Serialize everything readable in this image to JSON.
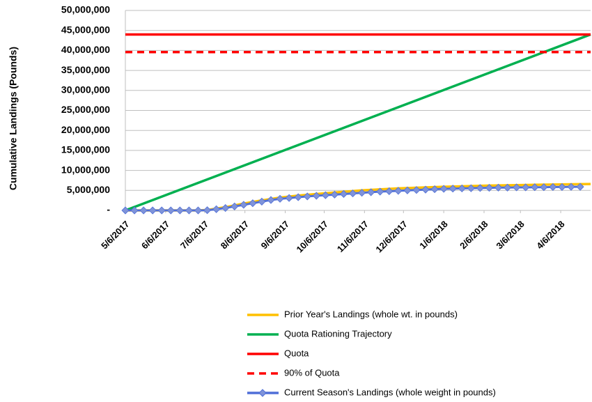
{
  "chart_data": {
    "type": "line",
    "y_label": "Cumulative Landings (Pounds)",
    "xlim": [
      0,
      358
    ],
    "xticks": [
      {
        "value": 0,
        "label": "5/6/2017"
      },
      {
        "value": 31,
        "label": "6/6/2017"
      },
      {
        "value": 61,
        "label": "7/6/2017"
      },
      {
        "value": 92,
        "label": "8/6/2017"
      },
      {
        "value": 123,
        "label": "9/6/2017"
      },
      {
        "value": 153,
        "label": "10/6/2017"
      },
      {
        "value": 184,
        "label": "11/6/2017"
      },
      {
        "value": 214,
        "label": "12/6/2017"
      },
      {
        "value": 245,
        "label": "1/6/2018"
      },
      {
        "value": 276,
        "label": "2/6/2018"
      },
      {
        "value": 304,
        "label": "3/6/2018"
      },
      {
        "value": 335,
        "label": "4/6/2018"
      }
    ],
    "ylim": [
      0,
      50000000
    ],
    "yticks": [
      {
        "value": 0,
        "label": "-"
      },
      {
        "value": 5000000,
        "label": "5,000,000"
      },
      {
        "value": 10000000,
        "label": "10,000,000"
      },
      {
        "value": 15000000,
        "label": "15,000,000"
      },
      {
        "value": 20000000,
        "label": "20,000,000"
      },
      {
        "value": 25000000,
        "label": "25,000,000"
      },
      {
        "value": 30000000,
        "label": "30,000,000"
      },
      {
        "value": 35000000,
        "label": "35,000,000"
      },
      {
        "value": 40000000,
        "label": "40,000,000"
      },
      {
        "value": 45000000,
        "label": "45,000,000"
      },
      {
        "value": 50000000,
        "label": "50,000,000"
      }
    ],
    "grid": true,
    "legend": "bottom",
    "series": [
      {
        "name": "Prior Year's Landings (whole wt. in pounds)",
        "color": "#FFC000",
        "linestyle": "solid",
        "x": [
          0,
          28,
          56,
          63,
          77,
          91,
          105,
          119,
          133,
          154,
          182,
          210,
          245,
          280,
          315,
          358
        ],
        "values": [
          0,
          0,
          0,
          100000,
          800000,
          1700000,
          2500000,
          3200000,
          3700000,
          4300000,
          5000000,
          5500000,
          5900000,
          6200000,
          6400000,
          6600000
        ]
      },
      {
        "name": "Quota Rationing Trajectory",
        "color": "#00B050",
        "linestyle": "solid",
        "x": [
          0,
          358
        ],
        "values": [
          0,
          44000000
        ]
      },
      {
        "name": "Quota",
        "color": "#FF0000",
        "linestyle": "solid",
        "x": [
          0,
          358
        ],
        "values": [
          44000000,
          44000000
        ]
      },
      {
        "name": "90% of Quota",
        "color": "#FF0000",
        "linestyle": "dashed",
        "x": [
          0,
          358
        ],
        "values": [
          39600000,
          39600000
        ]
      },
      {
        "name": "Current Season's Landings (whole weight in pounds)",
        "color": "#4F6FD8",
        "linestyle": "solid",
        "marker": "diamond",
        "marker_color": "#7F93D9",
        "x": [
          0,
          7,
          14,
          21,
          28,
          35,
          42,
          49,
          56,
          63,
          70,
          77,
          84,
          91,
          98,
          105,
          112,
          119,
          126,
          133,
          140,
          147,
          154,
          161,
          168,
          175,
          182,
          189,
          196,
          203,
          210,
          217,
          224,
          231,
          238,
          245,
          252,
          259,
          266,
          273,
          280,
          287,
          294,
          301,
          308,
          315,
          322,
          329,
          336,
          343,
          350
        ],
        "values": [
          0,
          0,
          0,
          0,
          0,
          0,
          0,
          0,
          0,
          50000,
          300000,
          600000,
          1000000,
          1400000,
          1800000,
          2200000,
          2600000,
          2900000,
          3100000,
          3300000,
          3500000,
          3650000,
          3800000,
          3950000,
          4100000,
          4250000,
          4400000,
          4550000,
          4700000,
          4800000,
          4900000,
          5000000,
          5100000,
          5200000,
          5300000,
          5400000,
          5450000,
          5500000,
          5550000,
          5600000,
          5650000,
          5700000,
          5700000,
          5750000,
          5750000,
          5800000,
          5800000,
          5850000,
          5850000,
          5900000,
          5900000
        ]
      }
    ]
  }
}
